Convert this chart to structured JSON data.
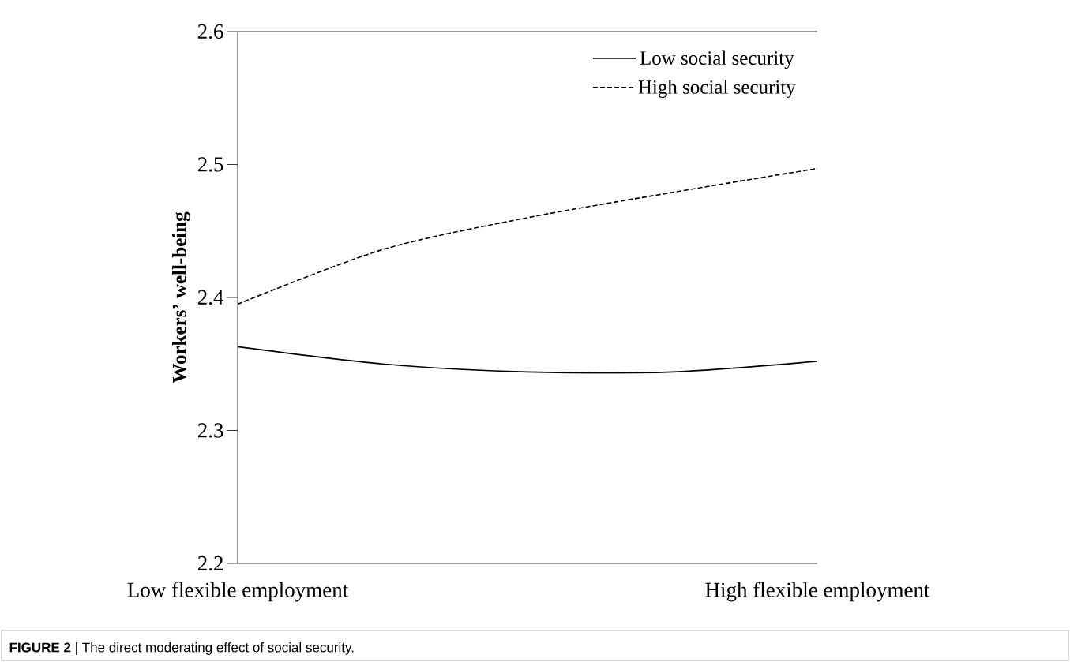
{
  "chart_data": {
    "type": "line",
    "ylabel": "Workers’ well-being",
    "categories": [
      "Low flexible employment",
      null,
      null,
      null,
      "High flexible employment"
    ],
    "series": [
      {
        "name": "Low social security",
        "color": "#000000",
        "line_style": "solid",
        "values": [
          2.363,
          2.35,
          2.344,
          2.344,
          2.352
        ]
      },
      {
        "name": "High social security",
        "color": "#000000",
        "line_style": "dashed",
        "values": [
          2.395,
          2.436,
          2.46,
          2.479,
          2.497
        ]
      }
    ],
    "ylim": [
      2.2,
      2.6
    ],
    "yticks": [
      2.2,
      2.3,
      2.4,
      2.5,
      2.6
    ],
    "grid": false,
    "legend": "top right",
    "marker": "none",
    "annotations": [
      "**FIGURE 2** | The direct moderating effect of social security."
    ]
  }
}
